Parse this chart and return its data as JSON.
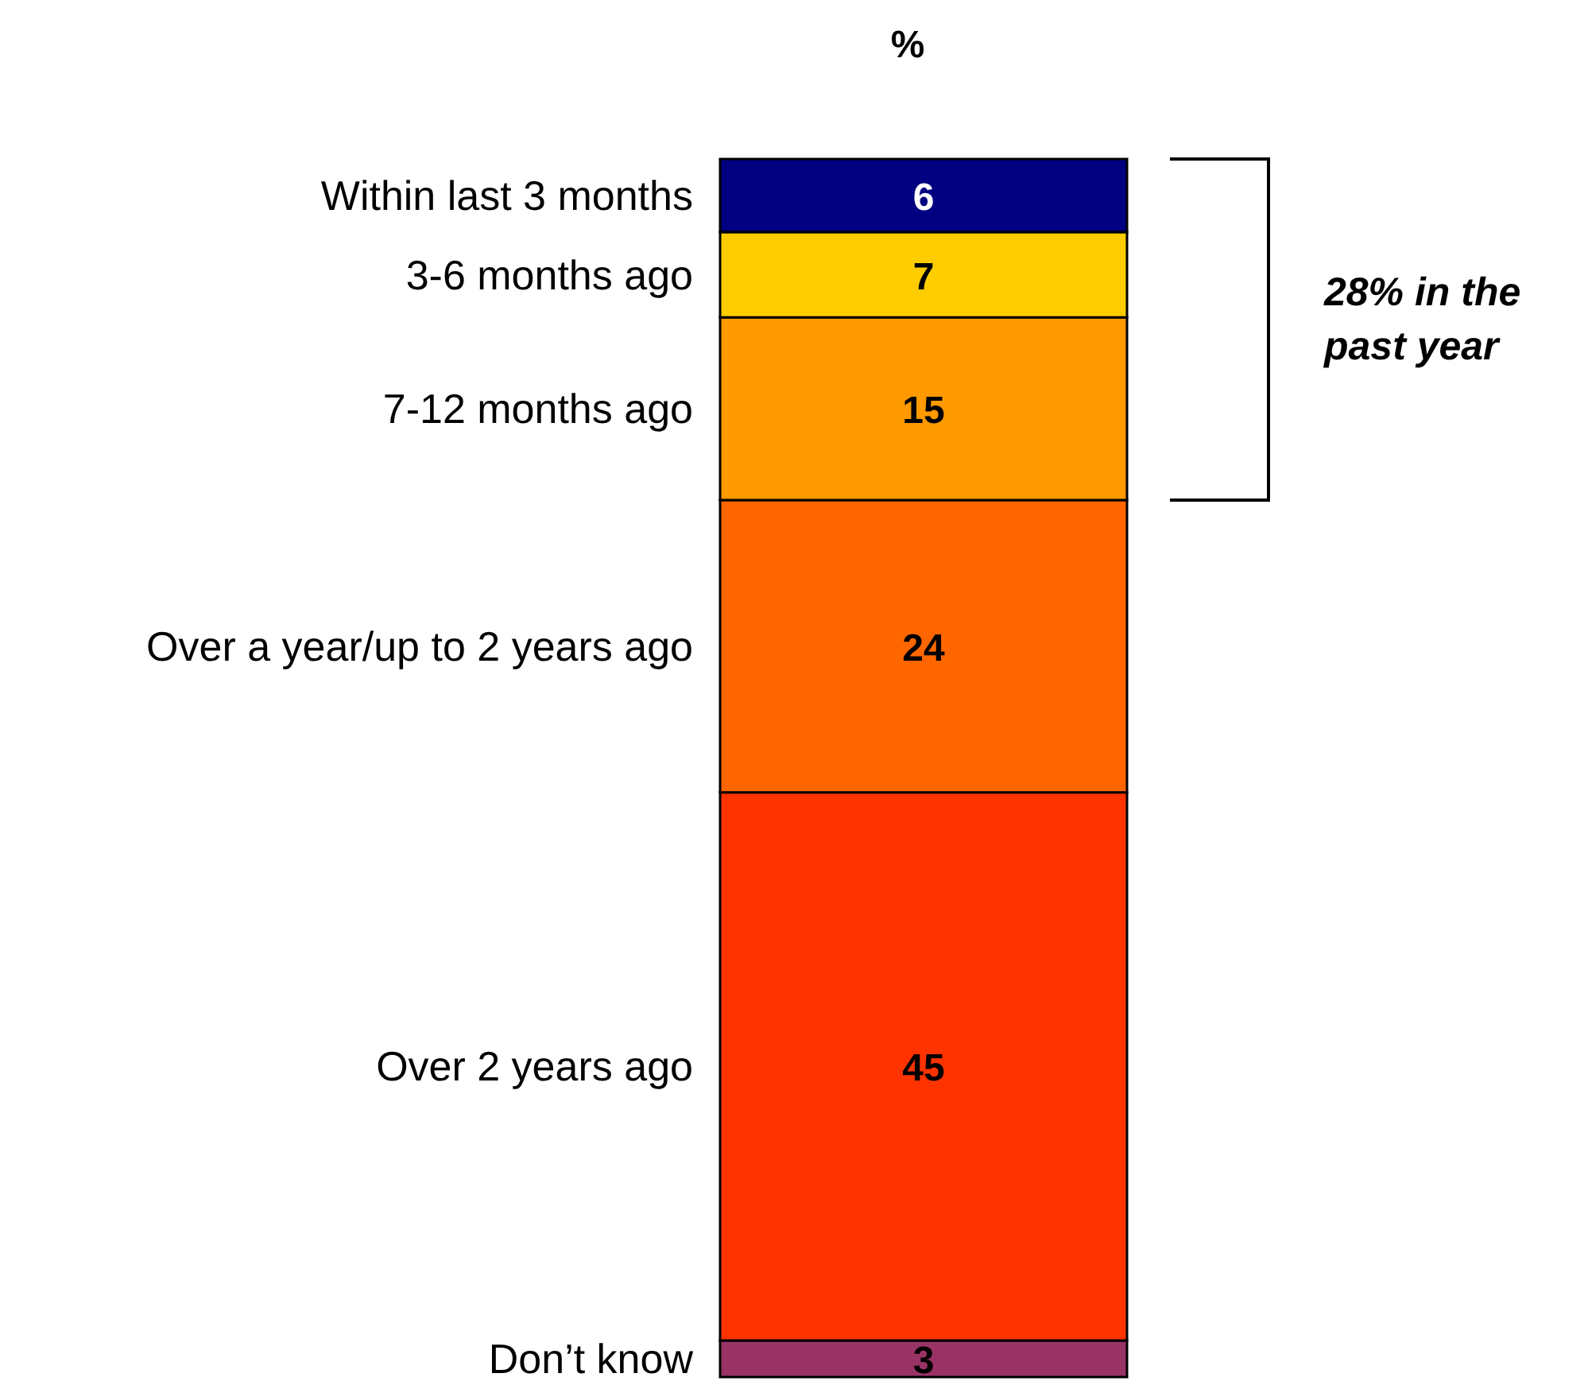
{
  "chart_data": {
    "type": "bar",
    "title": "%",
    "categories": [
      null
    ],
    "stacked": true,
    "data_labels": true,
    "series": [
      {
        "name": "Don’t know",
        "color": "#993366",
        "values": [
          3
        ]
      },
      {
        "name": "Over 2 years ago",
        "color": "#ff3300",
        "values": [
          45
        ]
      },
      {
        "name": "Over a year/up to 2 years ago",
        "color": "#ff6600",
        "values": [
          24
        ]
      },
      {
        "name": "7-12 months ago",
        "color": "#ff9900",
        "values": [
          15
        ]
      },
      {
        "name": "3-6 months ago",
        "color": "#ffcc00",
        "values": [
          7
        ]
      },
      {
        "name": "Within last 3 months",
        "color": "#000080",
        "values": [
          6
        ]
      }
    ],
    "annotations": [
      "28% in the past year"
    ]
  }
}
